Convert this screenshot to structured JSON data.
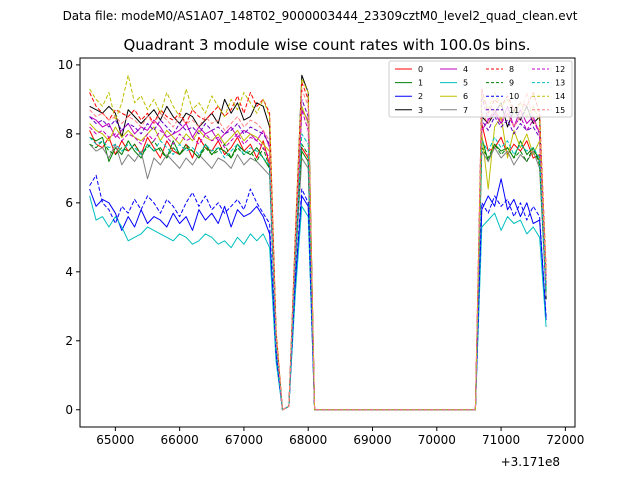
{
  "suptitle": "Data file: modeM0/AS1A07_148T02_9000003444_23309cztM0_level2_quad_clean.evt",
  "chart_data": {
    "type": "line",
    "title": "Quadrant 3 module wise count rates with 100.0s bins.",
    "xlabel": "",
    "ylabel": "",
    "x_offset_label": "+3.171e8",
    "xlim": [
      64450,
      72150
    ],
    "ylim": [
      -0.5,
      10.2
    ],
    "xticks": [
      65000,
      66000,
      67000,
      68000,
      69000,
      70000,
      71000,
      72000
    ],
    "yticks": [
      0,
      2,
      4,
      6,
      8,
      10
    ],
    "grid": false,
    "legend_position": "top-right",
    "x": [
      64600,
      64700,
      64800,
      64900,
      65000,
      65100,
      65200,
      65300,
      65400,
      65500,
      65600,
      65700,
      65800,
      65900,
      66000,
      66100,
      66200,
      66300,
      66400,
      66500,
      66600,
      66700,
      66800,
      66900,
      67000,
      67100,
      67200,
      67300,
      67400,
      67500,
      67600,
      67700,
      67800,
      67900,
      68000,
      68100,
      68200,
      68300,
      68400,
      68500,
      68600,
      68700,
      68800,
      68900,
      69000,
      69100,
      69200,
      69300,
      69400,
      69500,
      69600,
      69700,
      69800,
      69900,
      70000,
      70100,
      70200,
      70300,
      70400,
      70500,
      70600,
      70700,
      70800,
      70900,
      71000,
      71100,
      71200,
      71300,
      71400,
      71500,
      71600,
      71700
    ],
    "series": [
      {
        "name": "0",
        "color": "#ff0000",
        "dashed": false,
        "values": [
          8.1,
          7.7,
          7.6,
          7.9,
          7.4,
          7.8,
          7.5,
          7.7,
          7.4,
          7.9,
          7.6,
          7.3,
          7.8,
          7.5,
          7.4,
          7.7,
          7.3,
          7.9,
          7.6,
          7.5,
          7.8,
          7.4,
          7.6,
          7.9,
          7.5,
          7.7,
          7.3,
          7.8,
          7.1,
          2.0,
          0.0,
          0.1,
          4.5,
          7.6,
          7.3,
          0.0,
          0,
          0,
          0,
          0,
          0,
          0,
          0,
          0,
          0,
          0,
          0,
          0,
          0,
          0,
          0,
          0,
          0,
          0,
          0,
          0,
          0,
          0,
          0,
          0,
          0,
          8.3,
          7.5,
          7.6,
          7.9,
          7.4,
          7.7,
          7.5,
          7.8,
          7.3,
          7.4,
          3.8
        ]
      },
      {
        "name": "1",
        "color": "#008000",
        "dashed": false,
        "values": [
          7.9,
          7.8,
          7.9,
          7.2,
          7.6,
          7.4,
          7.8,
          7.5,
          7.3,
          7.7,
          7.5,
          7.6,
          7.3,
          7.8,
          7.4,
          7.6,
          7.5,
          7.3,
          7.7,
          7.4,
          7.6,
          7.5,
          7.3,
          7.7,
          7.5,
          7.4,
          7.6,
          7.3,
          7.0,
          1.9,
          0.0,
          0.1,
          4.3,
          7.5,
          7.2,
          0.0,
          0,
          0,
          0,
          0,
          0,
          0,
          0,
          0,
          0,
          0,
          0,
          0,
          0,
          0,
          0,
          0,
          0,
          0,
          0,
          0,
          0,
          0,
          0,
          0,
          0,
          7.9,
          7.2,
          7.7,
          7.5,
          7.6,
          7.3,
          7.8,
          7.4,
          7.6,
          7.2,
          3.5
        ]
      },
      {
        "name": "2",
        "color": "#0000ff",
        "dashed": false,
        "values": [
          6.4,
          5.9,
          6.1,
          6.0,
          5.7,
          5.2,
          5.6,
          5.3,
          5.8,
          5.4,
          5.6,
          5.5,
          5.3,
          5.7,
          5.4,
          5.6,
          5.2,
          5.8,
          5.5,
          5.7,
          5.4,
          5.9,
          5.3,
          5.8,
          5.6,
          5.7,
          5.9,
          5.6,
          5.1,
          1.5,
          0.0,
          0.1,
          3.7,
          6.2,
          5.9,
          0.0,
          0,
          0,
          0,
          0,
          0,
          0,
          0,
          0,
          0,
          0,
          0,
          0,
          0,
          0,
          0,
          0,
          0,
          0,
          0,
          0,
          0,
          0,
          0,
          0,
          0,
          5.8,
          6.2,
          5.9,
          6.7,
          5.8,
          6.1,
          5.6,
          6.0,
          5.4,
          5.5,
          2.6
        ]
      },
      {
        "name": "3",
        "color": "#000000",
        "dashed": false,
        "values": [
          8.8,
          8.7,
          8.6,
          8.8,
          8.6,
          7.9,
          8.7,
          8.5,
          8.3,
          8.5,
          8.7,
          8.4,
          8.8,
          8.5,
          8.3,
          8.6,
          8.5,
          8.2,
          8.4,
          8.6,
          8.3,
          9.0,
          8.6,
          8.9,
          8.4,
          8.5,
          8.9,
          8.8,
          8.2,
          2.2,
          0.0,
          0.1,
          5.0,
          9.7,
          9.2,
          0.0,
          0,
          0,
          0,
          0,
          0,
          0,
          0,
          0,
          0,
          0,
          0,
          0,
          0,
          0,
          0,
          0,
          0,
          0,
          0,
          0,
          0,
          0,
          0,
          0,
          0,
          8.5,
          8.3,
          8.6,
          8.9,
          8.2,
          8.7,
          8.4,
          8.8,
          8.3,
          8.5,
          3.2
        ]
      },
      {
        "name": "4",
        "color": "#c000c0",
        "dashed": false,
        "values": [
          8.5,
          8.4,
          8.2,
          8.3,
          7.9,
          8.1,
          8.3,
          8.0,
          8.2,
          8.1,
          8.4,
          8.2,
          7.9,
          8.0,
          8.1,
          8.3,
          7.9,
          8.2,
          8.0,
          8.1,
          7.8,
          8.0,
          8.2,
          7.9,
          8.1,
          8.0,
          7.8,
          8.1,
          7.6,
          2.1,
          0.0,
          0.1,
          4.7,
          8.7,
          8.4,
          0.0,
          0,
          0,
          0,
          0,
          0,
          0,
          0,
          0,
          0,
          0,
          0,
          0,
          0,
          0,
          0,
          0,
          0,
          0,
          0,
          0,
          0,
          0,
          0,
          0,
          0,
          8.1,
          8.4,
          8.6,
          8.3,
          8.8,
          8.2,
          8.7,
          8.3,
          8.5,
          8.0,
          3.9
        ]
      },
      {
        "name": "5",
        "color": "#00bfbf",
        "dashed": false,
        "values": [
          6.2,
          5.5,
          5.6,
          5.3,
          5.6,
          5.3,
          4.9,
          5.0,
          5.1,
          5.3,
          5.2,
          5.1,
          5.0,
          4.9,
          5.1,
          5.0,
          4.8,
          4.9,
          5.1,
          5.0,
          4.8,
          4.9,
          4.7,
          5.0,
          4.8,
          5.1,
          4.9,
          5.1,
          4.7,
          1.4,
          0.0,
          0.1,
          3.4,
          5.9,
          5.6,
          0.0,
          0,
          0,
          0,
          0,
          0,
          0,
          0,
          0,
          0,
          0,
          0,
          0,
          0,
          0,
          0,
          0,
          0,
          0,
          0,
          0,
          0,
          0,
          0,
          0,
          0,
          5.3,
          5.5,
          5.7,
          5.2,
          5.6,
          5.4,
          5.5,
          5.1,
          5.3,
          5.0,
          2.4
        ]
      },
      {
        "name": "6",
        "color": "#bfbf00",
        "dashed": false,
        "values": [
          8.3,
          8.1,
          8.0,
          7.8,
          8.2,
          7.9,
          8.1,
          7.9,
          7.8,
          8.0,
          8.2,
          7.8,
          8.1,
          7.9,
          7.7,
          8.0,
          7.8,
          8.1,
          7.9,
          7.8,
          8.0,
          7.7,
          7.9,
          8.1,
          7.8,
          8.0,
          7.9,
          7.7,
          7.5,
          2.0,
          0.0,
          0.1,
          4.6,
          8.8,
          8.3,
          0.0,
          0,
          0,
          0,
          0,
          0,
          0,
          0,
          0,
          0,
          0,
          0,
          0,
          0,
          0,
          0,
          0,
          0,
          0,
          0,
          0,
          0,
          0,
          0,
          0,
          0,
          8.0,
          6.4,
          8.2,
          8.5,
          7.3,
          8.1,
          7.6,
          8.0,
          7.4,
          7.8,
          3.6
        ]
      },
      {
        "name": "7",
        "color": "#808080",
        "dashed": false,
        "values": [
          7.7,
          7.5,
          7.6,
          7.3,
          7.7,
          7.1,
          7.4,
          7.2,
          7.5,
          6.7,
          7.3,
          7.1,
          7.4,
          7.2,
          7.0,
          7.3,
          7.1,
          7.4,
          7.2,
          7.0,
          7.3,
          7.2,
          7.0,
          7.4,
          7.1,
          7.3,
          7.2,
          7.0,
          6.8,
          1.8,
          0.0,
          0.1,
          4.2,
          7.3,
          7.0,
          0.0,
          0,
          0,
          0,
          0,
          0,
          0,
          0,
          0,
          0,
          0,
          0,
          0,
          0,
          0,
          0,
          0,
          0,
          0,
          0,
          0,
          0,
          0,
          0,
          0,
          0,
          7.5,
          7.2,
          7.6,
          7.3,
          7.5,
          7.1,
          7.4,
          7.2,
          7.5,
          7.0,
          3.3
        ]
      },
      {
        "name": "8",
        "color": "#ff0000",
        "dashed": true,
        "values": [
          9.2,
          8.8,
          8.6,
          8.4,
          8.7,
          8.6,
          8.5,
          8.7,
          8.4,
          8.6,
          8.3,
          8.7,
          8.5,
          8.4,
          8.6,
          8.3,
          8.7,
          8.5,
          8.4,
          8.6,
          8.8,
          8.5,
          8.7,
          9.1,
          8.6,
          9.2,
          8.8,
          9.0,
          8.6,
          2.3,
          0.0,
          0.1,
          5.1,
          9.5,
          9.0,
          0.0,
          0,
          0,
          0,
          0,
          0,
          0,
          0,
          0,
          0,
          0,
          0,
          0,
          0,
          0,
          0,
          0,
          0,
          0,
          0,
          0,
          0,
          0,
          0,
          0,
          0,
          9.3,
          8.6,
          9.0,
          8.8,
          9.1,
          8.7,
          8.9,
          8.8,
          9.2,
          8.6,
          4.1
        ]
      },
      {
        "name": "9",
        "color": "#008000",
        "dashed": true,
        "values": [
          7.7,
          7.6,
          7.8,
          7.5,
          7.4,
          7.6,
          7.5,
          7.7,
          7.4,
          7.6,
          7.8,
          7.5,
          7.3,
          7.6,
          7.4,
          7.7,
          7.5,
          7.3,
          7.6,
          7.4,
          7.5,
          7.7,
          7.3,
          7.6,
          7.4,
          7.5,
          7.2,
          7.6,
          7.0,
          1.9,
          0.0,
          0.1,
          4.4,
          7.7,
          7.4,
          0.0,
          0,
          0,
          0,
          0,
          0,
          0,
          0,
          0,
          0,
          0,
          0,
          0,
          0,
          0,
          0,
          0,
          0,
          0,
          0,
          0,
          0,
          0,
          0,
          0,
          0,
          7.6,
          7.3,
          7.7,
          7.4,
          7.6,
          7.3,
          7.5,
          7.2,
          7.6,
          7.1,
          3.4
        ]
      },
      {
        "name": "10",
        "color": "#0000ff",
        "dashed": true,
        "values": [
          6.5,
          6.8,
          6.0,
          5.8,
          5.4,
          5.9,
          5.7,
          6.1,
          5.8,
          6.2,
          6.0,
          5.7,
          6.1,
          5.9,
          5.6,
          6.0,
          6.3,
          5.9,
          6.2,
          5.8,
          6.0,
          5.7,
          5.9,
          6.1,
          5.8,
          6.4,
          6.0,
          5.7,
          5.4,
          1.6,
          0.0,
          0.1,
          3.8,
          6.4,
          6.0,
          0.0,
          0,
          0,
          0,
          0,
          0,
          0,
          0,
          0,
          0,
          0,
          0,
          0,
          0,
          0,
          0,
          0,
          0,
          0,
          0,
          0,
          0,
          0,
          0,
          0,
          0,
          6.0,
          5.7,
          6.2,
          5.9,
          6.1,
          5.6,
          6.0,
          5.5,
          5.9,
          5.6,
          2.7
        ]
      },
      {
        "name": "11",
        "color": "#6000c0",
        "dashed": true,
        "values": [
          8.5,
          8.3,
          8.4,
          8.2,
          8.4,
          8.1,
          8.3,
          8.2,
          8.0,
          8.3,
          8.1,
          8.4,
          8.2,
          8.0,
          8.3,
          8.1,
          8.2,
          8.0,
          8.3,
          8.1,
          8.2,
          8.0,
          8.1,
          8.3,
          8.0,
          8.2,
          8.1,
          8.0,
          7.7,
          2.1,
          0.0,
          0.1,
          4.8,
          9.0,
          8.5,
          0.0,
          0,
          0,
          0,
          0,
          0,
          0,
          0,
          0,
          0,
          0,
          0,
          0,
          0,
          0,
          0,
          0,
          0,
          0,
          0,
          0,
          0,
          0,
          0,
          0,
          0,
          8.4,
          8.1,
          8.5,
          8.2,
          8.4,
          8.0,
          8.3,
          8.1,
          8.2,
          7.9,
          3.7
        ]
      },
      {
        "name": "12",
        "color": "#c000c0",
        "dashed": true,
        "values": [
          8.2,
          8.0,
          8.1,
          7.9,
          8.0,
          7.8,
          8.0,
          7.9,
          7.7,
          8.0,
          7.8,
          8.1,
          7.9,
          7.7,
          8.0,
          7.8,
          7.9,
          7.7,
          8.0,
          7.8,
          7.9,
          7.6,
          7.8,
          8.0,
          7.7,
          7.9,
          7.8,
          7.6,
          7.3,
          2.0,
          0.0,
          0.1,
          4.6,
          8.7,
          8.1,
          0.0,
          0,
          0,
          0,
          0,
          0,
          0,
          0,
          0,
          0,
          0,
          0,
          0,
          0,
          0,
          0,
          0,
          0,
          0,
          0,
          0,
          0,
          0,
          0,
          0,
          0,
          9.1,
          8.4,
          8.7,
          8.3,
          8.6,
          8.2,
          8.5,
          8.1,
          8.4,
          8.0,
          3.6
        ]
      },
      {
        "name": "13",
        "color": "#00bfbf",
        "dashed": true,
        "values": [
          7.9,
          7.7,
          7.8,
          7.6,
          7.7,
          7.5,
          7.7,
          7.6,
          7.4,
          7.7,
          7.5,
          7.8,
          7.6,
          7.4,
          7.7,
          7.5,
          7.6,
          7.4,
          7.7,
          7.5,
          7.6,
          7.3,
          7.5,
          7.7,
          7.4,
          7.6,
          7.5,
          7.3,
          7.1,
          1.9,
          0.0,
          0.1,
          4.4,
          8.0,
          7.7,
          0.0,
          0,
          0,
          0,
          0,
          0,
          0,
          0,
          0,
          0,
          0,
          0,
          0,
          0,
          0,
          0,
          0,
          0,
          0,
          0,
          0,
          0,
          0,
          0,
          0,
          0,
          7.8,
          7.5,
          7.9,
          7.6,
          7.8,
          7.4,
          7.7,
          7.5,
          7.6,
          7.3,
          3.4
        ]
      },
      {
        "name": "14",
        "color": "#bfbf00",
        "dashed": true,
        "values": [
          9.3,
          9.0,
          8.8,
          9.2,
          8.4,
          8.9,
          9.7,
          8.9,
          9.1,
          8.7,
          9.0,
          8.6,
          9.2,
          8.8,
          8.5,
          9.3,
          8.7,
          8.9,
          8.6,
          9.1,
          8.8,
          8.5,
          9.0,
          8.7,
          9.2,
          8.9,
          8.6,
          9.0,
          8.5,
          2.3,
          0.0,
          0.1,
          5.2,
          9.6,
          9.2,
          0.0,
          0,
          0,
          0,
          0,
          0,
          0,
          0,
          0,
          0,
          0,
          0,
          0,
          0,
          0,
          0,
          0,
          0,
          0,
          0,
          0,
          0,
          0,
          0,
          0,
          0,
          9.1,
          8.7,
          9.2,
          8.8,
          9.0,
          8.6,
          8.9,
          8.5,
          8.8,
          8.4,
          4.0
        ]
      },
      {
        "name": "15",
        "color": "#ff8080",
        "dashed": true,
        "values": [
          8.7,
          8.5,
          8.6,
          8.4,
          8.5,
          8.3,
          8.5,
          8.4,
          8.2,
          8.5,
          8.3,
          8.6,
          8.4,
          8.2,
          8.5,
          8.3,
          8.4,
          8.2,
          8.5,
          8.3,
          8.4,
          8.1,
          8.3,
          8.5,
          8.2,
          8.4,
          8.3,
          8.1,
          7.8,
          2.1,
          0.0,
          0.1,
          4.9,
          9.3,
          8.8,
          0.0,
          0,
          0,
          0,
          0,
          0,
          0,
          0,
          0,
          0,
          0,
          0,
          0,
          0,
          0,
          0,
          0,
          0,
          0,
          0,
          0,
          0,
          0,
          0,
          0,
          0,
          8.6,
          8.3,
          8.7,
          8.4,
          8.6,
          8.2,
          8.5,
          9.2,
          8.4,
          8.1,
          3.8
        ]
      }
    ]
  }
}
